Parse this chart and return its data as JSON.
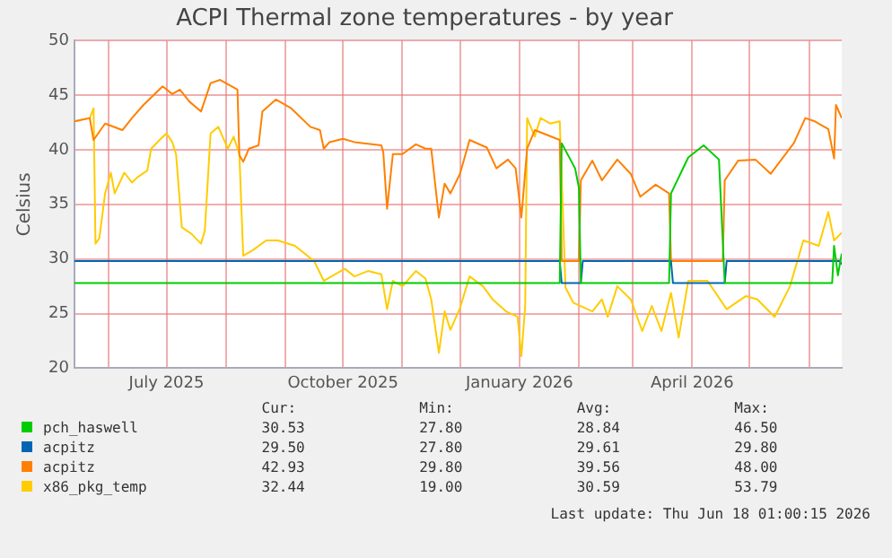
{
  "chart_data": {
    "type": "line",
    "title": "ACPI Thermal zone temperatures - by year",
    "ylabel": "Celsius",
    "xlim": [
      "2025-05-14",
      "2026-06-18"
    ],
    "ylim": [
      20,
      50
    ],
    "yticks": [
      20,
      25,
      30,
      35,
      40,
      45,
      50
    ],
    "xticks": [
      {
        "value": "2025-06-01",
        "label": null
      },
      {
        "value": "2025-07-01",
        "label": "July 2025"
      },
      {
        "value": "2025-08-01",
        "label": null
      },
      {
        "value": "2025-09-01",
        "label": null
      },
      {
        "value": "2025-10-01",
        "label": "October 2025"
      },
      {
        "value": "2025-11-01",
        "label": null
      },
      {
        "value": "2025-12-01",
        "label": null
      },
      {
        "value": "2026-01-01",
        "label": "January 2026"
      },
      {
        "value": "2026-02-01",
        "label": null
      },
      {
        "value": "2026-03-01",
        "label": null
      },
      {
        "value": "2026-04-01",
        "label": "April 2026"
      },
      {
        "value": "2026-05-01",
        "label": null
      },
      {
        "value": "2026-06-01",
        "label": null
      }
    ],
    "grid": true,
    "legend": "bottom",
    "marker": "none",
    "line_style": "solid",
    "series": [
      {
        "name": "pch_haswell",
        "color": "#00cc00",
        "x": [
          "2025-05-14",
          "2026-01-22",
          "2026-01-23",
          "2026-01-30",
          "2026-02-01",
          "2026-02-02",
          "2026-03-20",
          "2026-03-21",
          "2026-03-30",
          "2026-04-07",
          "2026-04-15",
          "2026-04-18",
          "2026-06-13",
          "2026-06-14",
          "2026-06-16",
          "2026-06-18"
        ],
        "values": [
          27.8,
          27.8,
          40.6,
          38.3,
          36.5,
          27.8,
          27.8,
          36.0,
          39.3,
          40.4,
          39.1,
          27.8,
          27.8,
          31.2,
          28.5,
          30.5
        ]
      },
      {
        "name": "acpitz",
        "color": "#0066b3",
        "x": [
          "2025-05-14",
          "2026-01-22",
          "2026-01-23",
          "2026-02-02",
          "2026-02-03",
          "2026-03-21",
          "2026-03-22",
          "2026-04-18",
          "2026-04-19",
          "2026-06-17",
          "2026-06-18"
        ],
        "values": [
          29.8,
          29.8,
          27.8,
          27.8,
          29.8,
          29.8,
          27.8,
          27.8,
          29.8,
          29.8,
          29.5
        ]
      },
      {
        "name": "acpitz",
        "color": "#ff8000",
        "x": [
          "2025-05-14",
          "2025-05-22",
          "2025-05-24",
          "2025-05-30",
          "2025-06-08",
          "2025-06-13",
          "2025-06-19",
          "2025-06-29",
          "2025-07-04",
          "2025-07-08",
          "2025-07-13",
          "2025-07-19",
          "2025-07-24",
          "2025-07-29",
          "2025-08-07",
          "2025-08-08",
          "2025-08-10",
          "2025-08-13",
          "2025-08-18",
          "2025-08-20",
          "2025-08-27",
          "2025-09-04",
          "2025-09-14",
          "2025-09-19",
          "2025-09-21",
          "2025-09-24",
          "2025-10-01",
          "2025-10-07",
          "2025-10-21",
          "2025-10-22",
          "2025-10-24",
          "2025-10-27",
          "2025-11-01",
          "2025-11-08",
          "2025-11-13",
          "2025-11-16",
          "2025-11-20",
          "2025-11-23",
          "2025-11-26",
          "2025-12-01",
          "2025-12-06",
          "2025-12-15",
          "2025-12-20",
          "2025-12-26",
          "2025-12-30",
          "2026-01-02",
          "2026-01-05",
          "2026-01-09",
          "2026-01-22",
          "2026-01-23",
          "2026-02-01",
          "2026-02-02",
          "2026-02-08",
          "2026-02-13",
          "2026-02-21",
          "2026-02-28",
          "2026-03-05",
          "2026-03-13",
          "2026-03-20",
          "2026-03-21",
          "2026-04-17",
          "2026-04-18",
          "2026-04-25",
          "2026-05-04",
          "2026-05-12",
          "2026-05-24",
          "2026-05-30",
          "2026-06-04",
          "2026-06-11",
          "2026-06-14",
          "2026-06-15",
          "2026-06-18"
        ],
        "values": [
          42.6,
          42.9,
          40.9,
          42.4,
          41.8,
          42.9,
          44.1,
          45.8,
          45.1,
          45.5,
          44.4,
          43.5,
          46.1,
          46.4,
          45.5,
          39.5,
          38.9,
          40.1,
          40.4,
          43.5,
          44.6,
          43.8,
          42.1,
          41.8,
          40.1,
          40.7,
          41.0,
          40.7,
          40.4,
          39.8,
          34.6,
          39.6,
          39.6,
          40.5,
          40.1,
          40.1,
          33.8,
          36.9,
          36.0,
          37.8,
          40.9,
          40.2,
          38.3,
          39.1,
          38.3,
          33.8,
          40.1,
          41.8,
          40.9,
          29.8,
          29.8,
          37.2,
          39.0,
          37.2,
          39.1,
          37.8,
          35.7,
          36.8,
          36.0,
          29.8,
          29.8,
          37.2,
          39.0,
          39.1,
          37.8,
          40.6,
          42.9,
          42.6,
          41.9,
          39.2,
          44.1,
          42.9
        ]
      },
      {
        "name": "x86_pkg_temp",
        "color": "#ffcc00",
        "x": [
          "2025-05-14",
          "2025-05-22",
          "2025-05-24",
          "2025-05-25",
          "2025-05-27",
          "2025-05-30",
          "2025-06-02",
          "2025-06-04",
          "2025-06-09",
          "2025-06-13",
          "2025-06-16",
          "2025-06-21",
          "2025-06-23",
          "2025-06-28",
          "2025-07-01",
          "2025-07-04",
          "2025-07-06",
          "2025-07-09",
          "2025-07-14",
          "2025-07-19",
          "2025-07-21",
          "2025-07-24",
          "2025-07-28",
          "2025-08-02",
          "2025-08-05",
          "2025-08-08",
          "2025-08-10",
          "2025-08-15",
          "2025-08-22",
          "2025-08-28",
          "2025-09-06",
          "2025-09-16",
          "2025-09-21",
          "2025-09-27",
          "2025-10-02",
          "2025-10-07",
          "2025-10-14",
          "2025-10-21",
          "2025-10-24",
          "2025-10-27",
          "2025-11-01",
          "2025-11-08",
          "2025-11-13",
          "2025-11-16",
          "2025-11-20",
          "2025-11-23",
          "2025-11-26",
          "2025-12-01",
          "2025-12-06",
          "2025-12-13",
          "2025-12-18",
          "2025-12-25",
          "2025-12-31",
          "2026-01-02",
          "2026-01-04",
          "2026-01-05",
          "2026-01-09",
          "2026-01-12",
          "2026-01-17",
          "2026-01-22",
          "2026-01-25",
          "2026-01-29",
          "2026-02-08",
          "2026-02-13",
          "2026-02-16",
          "2026-02-21",
          "2026-02-28",
          "2026-03-06",
          "2026-03-11",
          "2026-03-16",
          "2026-03-21",
          "2026-03-25",
          "2026-03-30",
          "2026-04-09",
          "2026-04-19",
          "2026-04-29",
          "2026-05-05",
          "2026-05-14",
          "2026-05-22",
          "2026-05-29",
          "2026-06-06",
          "2026-06-11",
          "2026-06-14",
          "2026-06-18"
        ],
        "values": [
          42.6,
          42.9,
          43.8,
          31.4,
          31.9,
          36.0,
          37.9,
          36.0,
          37.9,
          37.0,
          37.5,
          38.1,
          40.1,
          41.0,
          41.5,
          40.7,
          39.6,
          32.9,
          32.3,
          31.4,
          32.6,
          41.5,
          42.1,
          40.1,
          41.2,
          39.6,
          30.3,
          30.8,
          31.7,
          31.7,
          31.2,
          29.8,
          28.0,
          28.6,
          29.1,
          28.4,
          28.9,
          28.6,
          25.4,
          28.0,
          27.5,
          28.9,
          28.2,
          26.3,
          21.4,
          25.2,
          23.5,
          25.5,
          28.4,
          27.5,
          26.3,
          25.2,
          24.7,
          21.1,
          25.7,
          42.9,
          41.2,
          42.9,
          42.4,
          42.6,
          27.4,
          26.0,
          25.2,
          26.3,
          24.7,
          27.5,
          26.3,
          23.4,
          25.7,
          23.4,
          26.9,
          22.8,
          28.0,
          28.0,
          25.4,
          26.6,
          26.3,
          24.7,
          27.5,
          31.7,
          31.2,
          34.3,
          31.7,
          32.4
        ]
      }
    ],
    "annotations": [
      "Cur:",
      "Min:",
      "Avg:",
      "Max:",
      "30.53",
      "27.80",
      "28.84",
      "46.50",
      "29.50",
      "27.80",
      "29.61",
      "29.80",
      "42.93",
      "29.80",
      "39.56",
      "48.00",
      "32.44",
      "19.00",
      "30.59",
      "53.79",
      "Last update: Thu Jun 18 01:00:15 2026"
    ]
  }
}
